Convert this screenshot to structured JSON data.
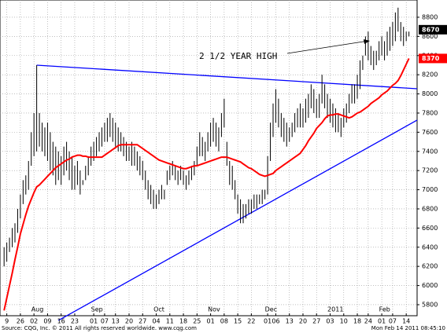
{
  "chart_data": {
    "type": "ohlc",
    "annotation": "2 1/2 YEAR HIGH",
    "source": "Source: CQG, Inc. © 2011 All rights reserved worldwide. www.cqg.com",
    "timestamp": "Mon Feb 14 2011 08:45:10",
    "last_price": 8670,
    "last_price_color": "#000000",
    "ma_last": 8370,
    "bar_color": "#000000",
    "grid": true,
    "ylim": [
      5685,
      8980
    ],
    "yticks": [
      5800,
      6000,
      6200,
      6400,
      6600,
      6800,
      7000,
      7200,
      7400,
      7600,
      7800,
      8000,
      8200,
      8400,
      8600,
      8800
    ],
    "xlim": [
      -1.5,
      152
    ],
    "xticks": [
      {
        "value": 1,
        "label": "9"
      },
      {
        "value": 6,
        "label": "26"
      },
      {
        "value": 11,
        "label": "02"
      },
      {
        "value": 16,
        "label": "09"
      },
      {
        "value": 21,
        "label": "16"
      },
      {
        "value": 26,
        "label": "23"
      },
      {
        "value": 33,
        "label": "01"
      },
      {
        "value": 37,
        "label": "07"
      },
      {
        "value": 41,
        "label": "13"
      },
      {
        "value": 46,
        "label": "20"
      },
      {
        "value": 51,
        "label": "27"
      },
      {
        "value": 56,
        "label": "04"
      },
      {
        "value": 61,
        "label": "11"
      },
      {
        "value": 66,
        "label": "18"
      },
      {
        "value": 71,
        "label": "25"
      },
      {
        "value": 76,
        "label": "01"
      },
      {
        "value": 81,
        "label": "08"
      },
      {
        "value": 86,
        "label": "15"
      },
      {
        "value": 91,
        "label": "22"
      },
      {
        "value": 97,
        "label": "01"
      },
      {
        "value": 100,
        "label": "06"
      },
      {
        "value": 105,
        "label": "13"
      },
      {
        "value": 110,
        "label": "20"
      },
      {
        "value": 115,
        "label": "27"
      },
      {
        "value": 120,
        "label": "03"
      },
      {
        "value": 125,
        "label": "10"
      },
      {
        "value": 130,
        "label": "18"
      },
      {
        "value": 134,
        "label": "24"
      },
      {
        "value": 139,
        "label": "01"
      },
      {
        "value": 143,
        "label": "07"
      },
      {
        "value": 148,
        "label": "14"
      }
    ],
    "month_labels": [
      {
        "value": 10,
        "label": "Aug"
      },
      {
        "value": 32,
        "label": "Sep"
      },
      {
        "value": 55,
        "label": "Oct"
      },
      {
        "value": 75,
        "label": "Nov"
      },
      {
        "value": 96,
        "label": "Dec"
      },
      {
        "value": 119,
        "label": "2011"
      },
      {
        "value": 138,
        "label": "Feb"
      }
    ],
    "high": [
      6400,
      6450,
      6500,
      6600,
      6650,
      6800,
      6950,
      7100,
      7150,
      7300,
      7600,
      7800,
      8300,
      7800,
      7700,
      7650,
      7700,
      7600,
      7500,
      7450,
      7400,
      7350,
      7450,
      7500,
      7400,
      7350,
      7250,
      7300,
      7200,
      7100,
      7250,
      7350,
      7450,
      7500,
      7550,
      7600,
      7650,
      7700,
      7750,
      7800,
      7750,
      7700,
      7650,
      7600,
      7550,
      7500,
      7450,
      7500,
      7450,
      7400,
      7350,
      7300,
      7200,
      7100,
      7050,
      7000,
      6950,
      7000,
      7050,
      7000,
      7200,
      7250,
      7300,
      7250,
      7200,
      7250,
      7200,
      7150,
      7200,
      7250,
      7300,
      7450,
      7600,
      7550,
      7500,
      7600,
      7700,
      7750,
      7700,
      7650,
      7800,
      7950,
      7500,
      7300,
      7250,
      7100,
      6950,
      6900,
      6850,
      6850,
      6900,
      6900,
      6950,
      6950,
      6950,
      7000,
      7000,
      7350,
      7700,
      7900,
      8050,
      7950,
      7800,
      7750,
      7700,
      7650,
      7700,
      7800,
      7850,
      7900,
      7850,
      7950,
      8000,
      8100,
      8050,
      7950,
      8000,
      8200,
      8100,
      8000,
      7950,
      7900,
      7850,
      7800,
      7750,
      7850,
      7900,
      8000,
      8100,
      8100,
      8200,
      8350,
      8400,
      8600,
      8650,
      8500,
      8450,
      8450,
      8550,
      8600,
      8550,
      8650,
      8700,
      8750,
      8850,
      8900,
      8750,
      8700,
      8650,
      8650
    ],
    "low": [
      6200,
      6250,
      6350,
      6400,
      6450,
      6550,
      6700,
      6850,
      6950,
      7000,
      7250,
      7350,
      7400,
      7450,
      7400,
      7350,
      7300,
      7200,
      7150,
      7050,
      7100,
      7050,
      7150,
      7200,
      7100,
      7000,
      7000,
      7050,
      6950,
      7050,
      7100,
      7150,
      7250,
      7300,
      7350,
      7400,
      7450,
      7500,
      7500,
      7550,
      7500,
      7450,
      7400,
      7400,
      7350,
      7300,
      7300,
      7250,
      7250,
      7200,
      7150,
      7100,
      7000,
      6900,
      6850,
      6800,
      6800,
      6850,
      6900,
      6900,
      7050,
      7100,
      7150,
      7100,
      7050,
      7100,
      7050,
      7000,
      7050,
      7100,
      7150,
      7250,
      7350,
      7350,
      7300,
      7400,
      7450,
      7500,
      7450,
      7400,
      7550,
      7650,
      7250,
      7050,
      7000,
      6900,
      6750,
      6650,
      6650,
      6700,
      6750,
      6750,
      6800,
      6800,
      6850,
      6850,
      6900,
      6950,
      7300,
      7550,
      7700,
      7650,
      7550,
      7500,
      7450,
      7500,
      7550,
      7600,
      7650,
      7650,
      7650,
      7700,
      7750,
      7850,
      7800,
      7750,
      7750,
      7900,
      7850,
      7750,
      7700,
      7650,
      7600,
      7600,
      7550,
      7650,
      7700,
      7800,
      7900,
      7900,
      7950,
      8050,
      8250,
      8400,
      8350,
      8300,
      8250,
      8300,
      8350,
      8400,
      8350,
      8400,
      8450,
      8500,
      8550,
      8650,
      8550,
      8500,
      8550,
      8600
    ],
    "moving_average": {
      "color": "#ff0000",
      "values": [
        5740,
        5870,
        6000,
        6130,
        6270,
        6400,
        6540,
        6640,
        6740,
        6830,
        6900,
        6970,
        7030,
        7050,
        7080,
        7110,
        7140,
        7170,
        7200,
        7230,
        7250,
        7270,
        7290,
        7310,
        7320,
        7340,
        7350,
        7360,
        7360,
        7350,
        7350,
        7340,
        7340,
        7340,
        7340,
        7340,
        7340,
        7360,
        7380,
        7400,
        7420,
        7440,
        7460,
        7470,
        7470,
        7470,
        7470,
        7470,
        7470,
        7470,
        7450,
        7430,
        7410,
        7390,
        7370,
        7350,
        7330,
        7310,
        7300,
        7290,
        7280,
        7270,
        7260,
        7250,
        7240,
        7230,
        7220,
        7220,
        7230,
        7240,
        7250,
        7250,
        7260,
        7270,
        7280,
        7290,
        7300,
        7310,
        7320,
        7330,
        7340,
        7340,
        7340,
        7330,
        7320,
        7310,
        7300,
        7290,
        7270,
        7250,
        7230,
        7220,
        7200,
        7180,
        7160,
        7150,
        7140,
        7150,
        7160,
        7170,
        7200,
        7220,
        7240,
        7260,
        7280,
        7300,
        7320,
        7340,
        7360,
        7380,
        7420,
        7460,
        7510,
        7550,
        7590,
        7640,
        7670,
        7700,
        7740,
        7770,
        7780,
        7780,
        7790,
        7790,
        7780,
        7770,
        7760,
        7750,
        7760,
        7780,
        7800,
        7810,
        7830,
        7850,
        7870,
        7900,
        7920,
        7940,
        7960,
        7990,
        8010,
        8030,
        8060,
        8090,
        8110,
        8140,
        8190,
        8250,
        8310,
        8370
      ]
    },
    "trendlines": [
      {
        "color": "#0000ff",
        "x": [
          12,
          152
        ],
        "values": [
          8300,
          8054
        ]
      },
      {
        "color": "#0000ff",
        "x": [
          20,
          152
        ],
        "values": [
          5636,
          7726
        ]
      }
    ]
  }
}
